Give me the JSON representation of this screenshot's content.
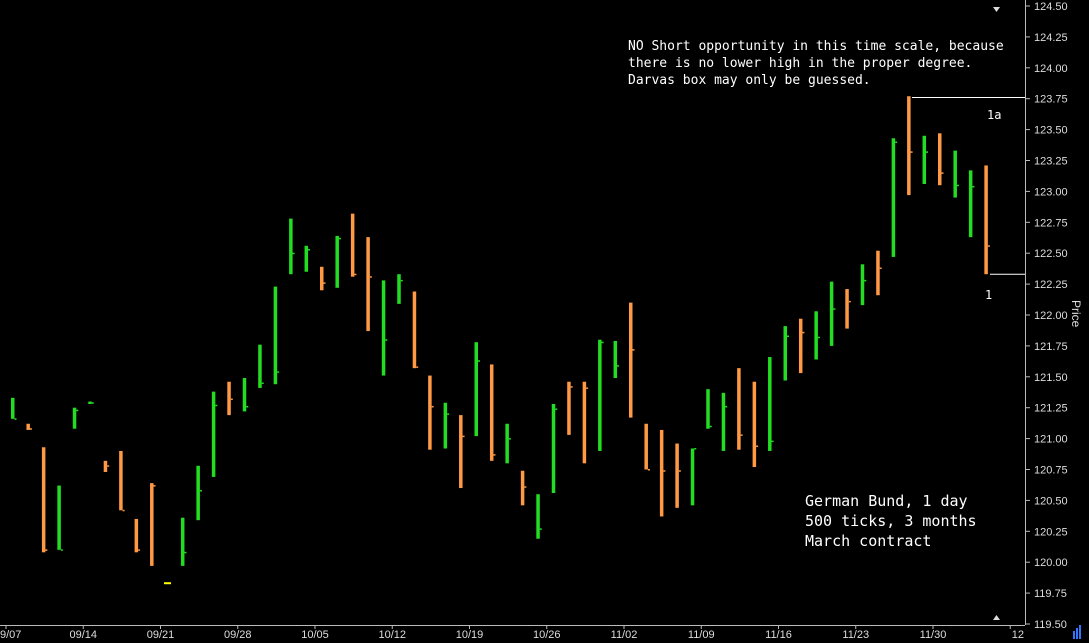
{
  "chart_data": {
    "type": "ohlc",
    "ylabel": "Price",
    "ylim": [
      119.5,
      124.5
    ],
    "y_ticks": [
      "124.50",
      "124.25",
      "124.00",
      "123.75",
      "123.50",
      "123.25",
      "123.00",
      "122.75",
      "122.50",
      "122.25",
      "122.00",
      "121.75",
      "121.50",
      "121.25",
      "121.00",
      "120.75",
      "120.50",
      "120.25",
      "120.00",
      "119.75",
      "119.50"
    ],
    "x_ticks": [
      "9/07",
      "09/14",
      "09/21",
      "09/28",
      "10/05",
      "10/12",
      "10/19",
      "10/26",
      "11/02",
      "11/09",
      "11/16",
      "11/23",
      "11/30",
      "12"
    ],
    "colors": {
      "up": "#22dd22",
      "down": "#ff9944",
      "line": "#ffffff",
      "axis_text": "#dddddd",
      "doji": "#ffff00"
    },
    "bars": [
      {
        "d": "09/08",
        "h": 121.33,
        "l": 121.16,
        "c": 121.16,
        "dir": "up"
      },
      {
        "d": "09/09",
        "h": 121.12,
        "l": 121.07,
        "c": 121.08,
        "dir": "down"
      },
      {
        "d": "09/10",
        "h": 120.93,
        "l": 120.08,
        "c": 120.1,
        "dir": "down"
      },
      {
        "d": "09/11",
        "h": 120.62,
        "l": 120.1,
        "c": 120.1,
        "dir": "up"
      },
      {
        "d": "09/14",
        "h": 121.25,
        "l": 121.08,
        "c": 121.23,
        "dir": "up"
      },
      {
        "d": "09/15",
        "h": 121.3,
        "l": 121.28,
        "c": 121.29,
        "dir": "up"
      },
      {
        "d": "09/16",
        "h": 120.82,
        "l": 120.73,
        "c": 120.78,
        "dir": "down"
      },
      {
        "d": "09/17",
        "h": 120.9,
        "l": 120.42,
        "c": 120.42,
        "dir": "down"
      },
      {
        "d": "09/18",
        "h": 120.35,
        "l": 120.08,
        "c": 120.1,
        "dir": "down"
      },
      {
        "d": "09/21",
        "h": 120.64,
        "l": 119.97,
        "c": 120.62,
        "dir": "down"
      },
      {
        "d": "09/22",
        "h": 119.83,
        "l": 119.83,
        "c": 119.83,
        "dir": "doji"
      },
      {
        "d": "09/23",
        "h": 120.36,
        "l": 119.97,
        "c": 120.08,
        "dir": "up"
      },
      {
        "d": "09/24",
        "h": 120.78,
        "l": 120.34,
        "c": 120.58,
        "dir": "up"
      },
      {
        "d": "09/25",
        "h": 121.38,
        "l": 120.69,
        "c": 121.27,
        "dir": "up"
      },
      {
        "d": "09/28",
        "h": 121.46,
        "l": 121.19,
        "c": 121.32,
        "dir": "down"
      },
      {
        "d": "09/29",
        "h": 121.49,
        "l": 121.22,
        "c": 121.26,
        "dir": "up"
      },
      {
        "d": "09/30",
        "h": 121.76,
        "l": 121.41,
        "c": 121.45,
        "dir": "up"
      },
      {
        "d": "10/01",
        "h": 122.23,
        "l": 121.44,
        "c": 121.54,
        "dir": "up"
      },
      {
        "d": "10/02",
        "h": 122.78,
        "l": 122.33,
        "c": 122.5,
        "dir": "up"
      },
      {
        "d": "10/05",
        "h": 122.56,
        "l": 122.35,
        "c": 122.53,
        "dir": "up"
      },
      {
        "d": "10/06",
        "h": 122.39,
        "l": 122.2,
        "c": 122.26,
        "dir": "down"
      },
      {
        "d": "10/07",
        "h": 122.64,
        "l": 122.22,
        "c": 122.62,
        "dir": "up"
      },
      {
        "d": "10/08",
        "h": 122.82,
        "l": 122.31,
        "c": 122.33,
        "dir": "down"
      },
      {
        "d": "10/09",
        "h": 122.63,
        "l": 121.87,
        "c": 122.31,
        "dir": "down"
      },
      {
        "d": "10/12",
        "h": 122.28,
        "l": 121.51,
        "c": 121.8,
        "dir": "up"
      },
      {
        "d": "10/13",
        "h": 122.33,
        "l": 122.09,
        "c": 122.28,
        "dir": "up"
      },
      {
        "d": "10/14",
        "h": 122.19,
        "l": 121.57,
        "c": 121.58,
        "dir": "down"
      },
      {
        "d": "10/15",
        "h": 121.51,
        "l": 120.91,
        "c": 121.26,
        "dir": "down"
      },
      {
        "d": "10/16",
        "h": 121.29,
        "l": 120.92,
        "c": 121.2,
        "dir": "up"
      },
      {
        "d": "10/19",
        "h": 121.19,
        "l": 120.6,
        "c": 121.02,
        "dir": "down"
      },
      {
        "d": "10/20",
        "h": 121.78,
        "l": 121.02,
        "c": 121.63,
        "dir": "up"
      },
      {
        "d": "10/21",
        "h": 121.6,
        "l": 120.82,
        "c": 120.87,
        "dir": "down"
      },
      {
        "d": "10/22",
        "h": 121.12,
        "l": 120.8,
        "c": 121.0,
        "dir": "up"
      },
      {
        "d": "10/23",
        "h": 120.74,
        "l": 120.46,
        "c": 120.61,
        "dir": "down"
      },
      {
        "d": "10/26",
        "h": 120.55,
        "l": 120.19,
        "c": 120.27,
        "dir": "up"
      },
      {
        "d": "10/27",
        "h": 121.28,
        "l": 120.56,
        "c": 121.24,
        "dir": "up"
      },
      {
        "d": "10/28",
        "h": 121.46,
        "l": 121.03,
        "c": 121.42,
        "dir": "down"
      },
      {
        "d": "10/29",
        "h": 121.46,
        "l": 120.8,
        "c": 121.41,
        "dir": "down"
      },
      {
        "d": "10/30",
        "h": 121.8,
        "l": 120.9,
        "c": 121.78,
        "dir": "up"
      },
      {
        "d": "11/02",
        "h": 121.79,
        "l": 121.49,
        "c": 121.59,
        "dir": "up"
      },
      {
        "d": "11/03",
        "h": 122.1,
        "l": 121.17,
        "c": 121.72,
        "dir": "down"
      },
      {
        "d": "11/04",
        "h": 121.12,
        "l": 120.75,
        "c": 120.75,
        "dir": "down"
      },
      {
        "d": "11/05",
        "h": 121.07,
        "l": 120.37,
        "c": 120.74,
        "dir": "down"
      },
      {
        "d": "11/06",
        "h": 120.96,
        "l": 120.44,
        "c": 120.74,
        "dir": "down"
      },
      {
        "d": "11/09",
        "h": 120.92,
        "l": 120.46,
        "c": 120.92,
        "dir": "up"
      },
      {
        "d": "11/10",
        "h": 121.4,
        "l": 121.08,
        "c": 121.1,
        "dir": "up"
      },
      {
        "d": "11/11",
        "h": 121.37,
        "l": 120.9,
        "c": 121.26,
        "dir": "up"
      },
      {
        "d": "11/12",
        "h": 121.57,
        "l": 120.91,
        "c": 121.03,
        "dir": "down"
      },
      {
        "d": "11/13",
        "h": 121.46,
        "l": 120.77,
        "c": 120.94,
        "dir": "down"
      },
      {
        "d": "11/16",
        "h": 121.66,
        "l": 120.9,
        "c": 120.98,
        "dir": "up"
      },
      {
        "d": "11/17",
        "h": 121.91,
        "l": 121.47,
        "c": 121.83,
        "dir": "up"
      },
      {
        "d": "11/18",
        "h": 121.97,
        "l": 121.53,
        "c": 121.86,
        "dir": "down"
      },
      {
        "d": "11/19",
        "h": 122.03,
        "l": 121.64,
        "c": 121.82,
        "dir": "up"
      },
      {
        "d": "11/20",
        "h": 122.27,
        "l": 121.75,
        "c": 122.05,
        "dir": "up"
      },
      {
        "d": "11/23",
        "h": 122.21,
        "l": 121.89,
        "c": 122.11,
        "dir": "down"
      },
      {
        "d": "11/24",
        "h": 122.41,
        "l": 122.08,
        "c": 122.28,
        "dir": "up"
      },
      {
        "d": "11/25",
        "h": 122.52,
        "l": 122.16,
        "c": 122.38,
        "dir": "down"
      },
      {
        "d": "11/26",
        "h": 123.43,
        "l": 122.47,
        "c": 123.4,
        "dir": "up"
      },
      {
        "d": "11/27",
        "h": 123.77,
        "l": 122.97,
        "c": 123.32,
        "dir": "down"
      },
      {
        "d": "11/30",
        "h": 123.45,
        "l": 123.06,
        "c": 123.32,
        "dir": "up"
      },
      {
        "d": "12/01",
        "h": 123.47,
        "l": 123.05,
        "c": 123.15,
        "dir": "down"
      },
      {
        "d": "12/02",
        "h": 123.33,
        "l": 122.95,
        "c": 123.05,
        "dir": "up"
      },
      {
        "d": "12/03",
        "h": 123.17,
        "l": 122.63,
        "c": 123.04,
        "dir": "up"
      },
      {
        "d": "12/04",
        "h": 123.21,
        "l": 122.33,
        "c": 122.56,
        "dir": "down"
      }
    ],
    "levels": [
      {
        "label": "1a",
        "value": 123.76
      },
      {
        "label": "1",
        "value": 122.33
      }
    ]
  },
  "annotations": {
    "note1": "NO Short opportunity in this time scale, because\nthere is no lower high in the proper degree.\nDarvas box may only be guessed.",
    "note2": "German Bund, 1 day\n500 ticks, 3 months\nMarch contract"
  }
}
